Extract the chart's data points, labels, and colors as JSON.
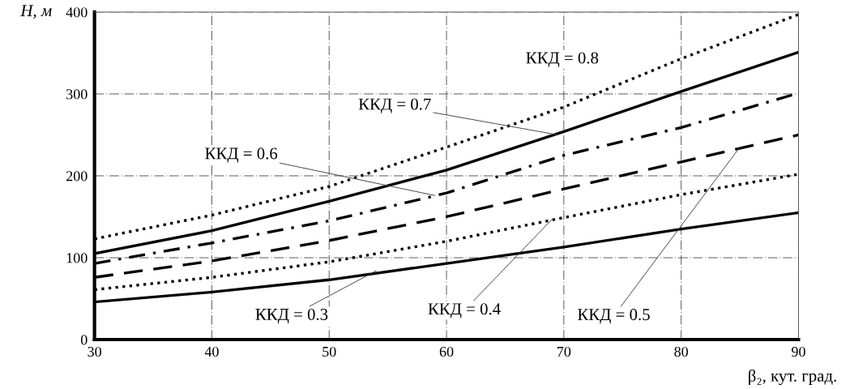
{
  "chart_data": {
    "type": "line",
    "xlabel": "β₂, кут. град.",
    "ylabel": "H, м",
    "x": [
      30,
      40,
      50,
      60,
      70,
      80,
      90
    ],
    "series": [
      {
        "color": "#000000",
        "line_style": "solid",
        "values": [
          46,
          58,
          73,
          93,
          113,
          135,
          155
        ]
      },
      {
        "color": "#000000",
        "line_style": "dotted",
        "values": [
          61,
          76,
          95,
          120,
          149,
          177,
          202
        ]
      },
      {
        "color": "#000000",
        "line_style": "dashed",
        "values": [
          76,
          96,
          121,
          150,
          184,
          217,
          250
        ]
      },
      {
        "color": "#000000",
        "line_style": "dashdot",
        "values": [
          93,
          118,
          145,
          179,
          225,
          259,
          301
        ]
      },
      {
        "color": "#000000",
        "line_style": "solid",
        "values": [
          105,
          133,
          169,
          207,
          254,
          303,
          351
        ]
      },
      {
        "color": "#000000",
        "line_style": "dotted",
        "values": [
          123,
          152,
          187,
          235,
          284,
          343,
          397
        ]
      }
    ],
    "annotations": [
      {
        "text": "ККД = 0.3",
        "x": 54,
        "y": 84
      },
      {
        "text": "ККД = 0.4",
        "x": 69,
        "y": 147
      },
      {
        "text": "ККД = 0.5",
        "x": 85,
        "y": 235
      },
      {
        "text": "ККД = 0.6",
        "x": 59,
        "y": 176
      },
      {
        "text": "ККД = 0.7",
        "x": 69.5,
        "y": 250
      },
      {
        "text": "ККД = 0.8",
        "x": 76,
        "y": 323
      }
    ],
    "xlim": [
      30,
      90
    ],
    "ylim": [
      0,
      400
    ],
    "xticks": [
      30,
      40,
      50,
      60,
      70,
      80,
      90
    ],
    "yticks": [
      0,
      100,
      200,
      300,
      400
    ],
    "grid": true,
    "legend": false
  }
}
